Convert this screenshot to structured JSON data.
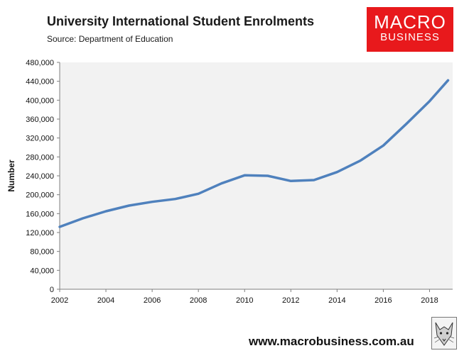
{
  "header": {
    "title": "University International Student Enrolments",
    "source": "Source: Department of Education"
  },
  "logo": {
    "line1": "MACRO",
    "line2": "BUSINESS",
    "color": "#e8191c"
  },
  "footer": {
    "website": "www.macrobusiness.com.au",
    "mascot_icon": "fox-sketch-icon"
  },
  "chart_data": {
    "type": "line",
    "title": "University International Student Enrolments",
    "ylabel": "Number",
    "xlabel": "",
    "xlim": [
      2002,
      2019
    ],
    "ylim": [
      0,
      480000
    ],
    "x_ticks": [
      2002,
      2004,
      2006,
      2008,
      2010,
      2012,
      2014,
      2016,
      2018
    ],
    "y_ticks": [
      0,
      40000,
      80000,
      120000,
      160000,
      200000,
      240000,
      280000,
      320000,
      360000,
      400000,
      440000,
      480000
    ],
    "y_tick_labels": [
      "0",
      "40,000",
      "80,000",
      "120,000",
      "160,000",
      "200,000",
      "240,000",
      "280,000",
      "320,000",
      "360,000",
      "400,000",
      "440,000",
      "480,000"
    ],
    "plot_background": "#f2f2f2",
    "line_color": "#4f81bd",
    "grid": false,
    "series": [
      {
        "x": [
          2002,
          2003,
          2004,
          2005,
          2006,
          2007,
          2008,
          2009,
          2010,
          2011,
          2012,
          2013,
          2014,
          2015,
          2016,
          2017,
          2018,
          2018.8
        ],
        "y": [
          132000,
          150000,
          165000,
          177000,
          185000,
          191000,
          202000,
          224000,
          241000,
          240000,
          229000,
          231000,
          248000,
          272000,
          304000,
          350000,
          398000,
          442000
        ]
      }
    ]
  }
}
